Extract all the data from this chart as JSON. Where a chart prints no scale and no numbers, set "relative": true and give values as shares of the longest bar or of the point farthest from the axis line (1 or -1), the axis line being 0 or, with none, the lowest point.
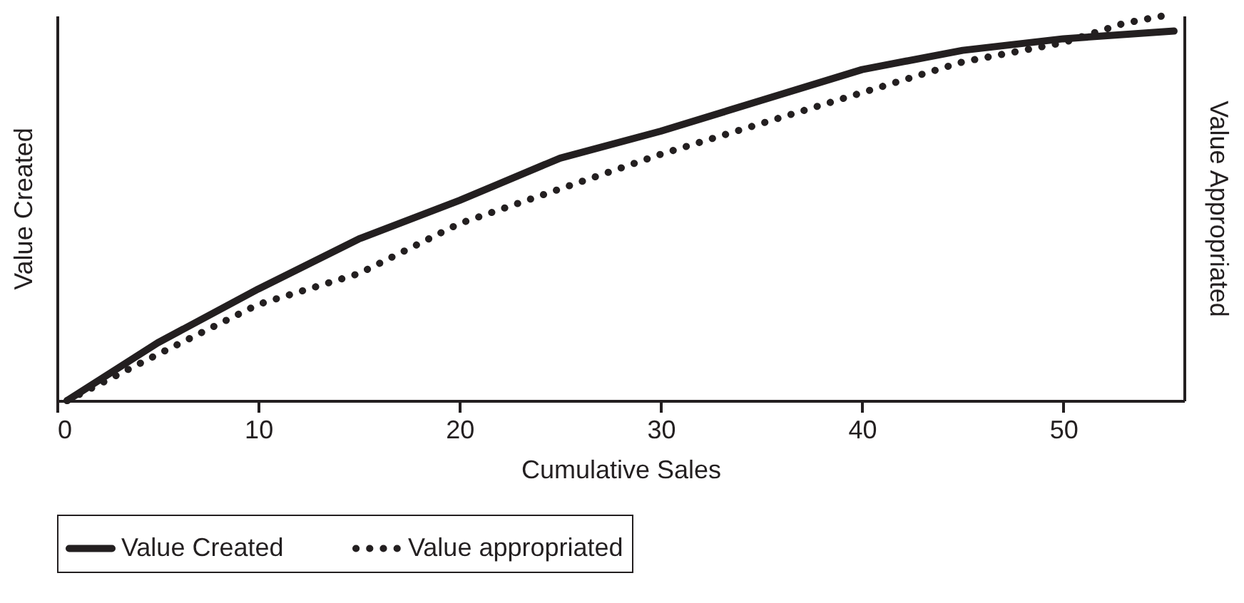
{
  "chart_data": {
    "type": "line",
    "xlabel": "Cumulative Sales",
    "ylabel": "Value Created",
    "y2label": "Value Appropriated",
    "relative": true,
    "xlim": [
      0,
      56
    ],
    "xticks": [
      0,
      10,
      20,
      30,
      40,
      50
    ],
    "legend": "bottom",
    "grid": false,
    "series": [
      {
        "name": "Value Created",
        "color": "#231f20",
        "line_style": "solid",
        "x": [
          0.5,
          5,
          10,
          15,
          20,
          25,
          30,
          35,
          40,
          45,
          50,
          55.5
        ],
        "values": [
          0,
          0.15,
          0.29,
          0.42,
          0.52,
          0.63,
          0.7,
          0.78,
          0.86,
          0.91,
          0.94,
          0.96
        ]
      },
      {
        "name": "Value appropriated",
        "color": "#231f20",
        "line_style": "dotted",
        "axis": "y2",
        "x": [
          0.5,
          5,
          10,
          15,
          20,
          25,
          30,
          35,
          40,
          45,
          50,
          53,
          55
        ],
        "values": [
          0,
          0.12,
          0.25,
          0.33,
          0.46,
          0.55,
          0.64,
          0.72,
          0.8,
          0.88,
          0.93,
          0.98,
          1
        ]
      }
    ]
  }
}
